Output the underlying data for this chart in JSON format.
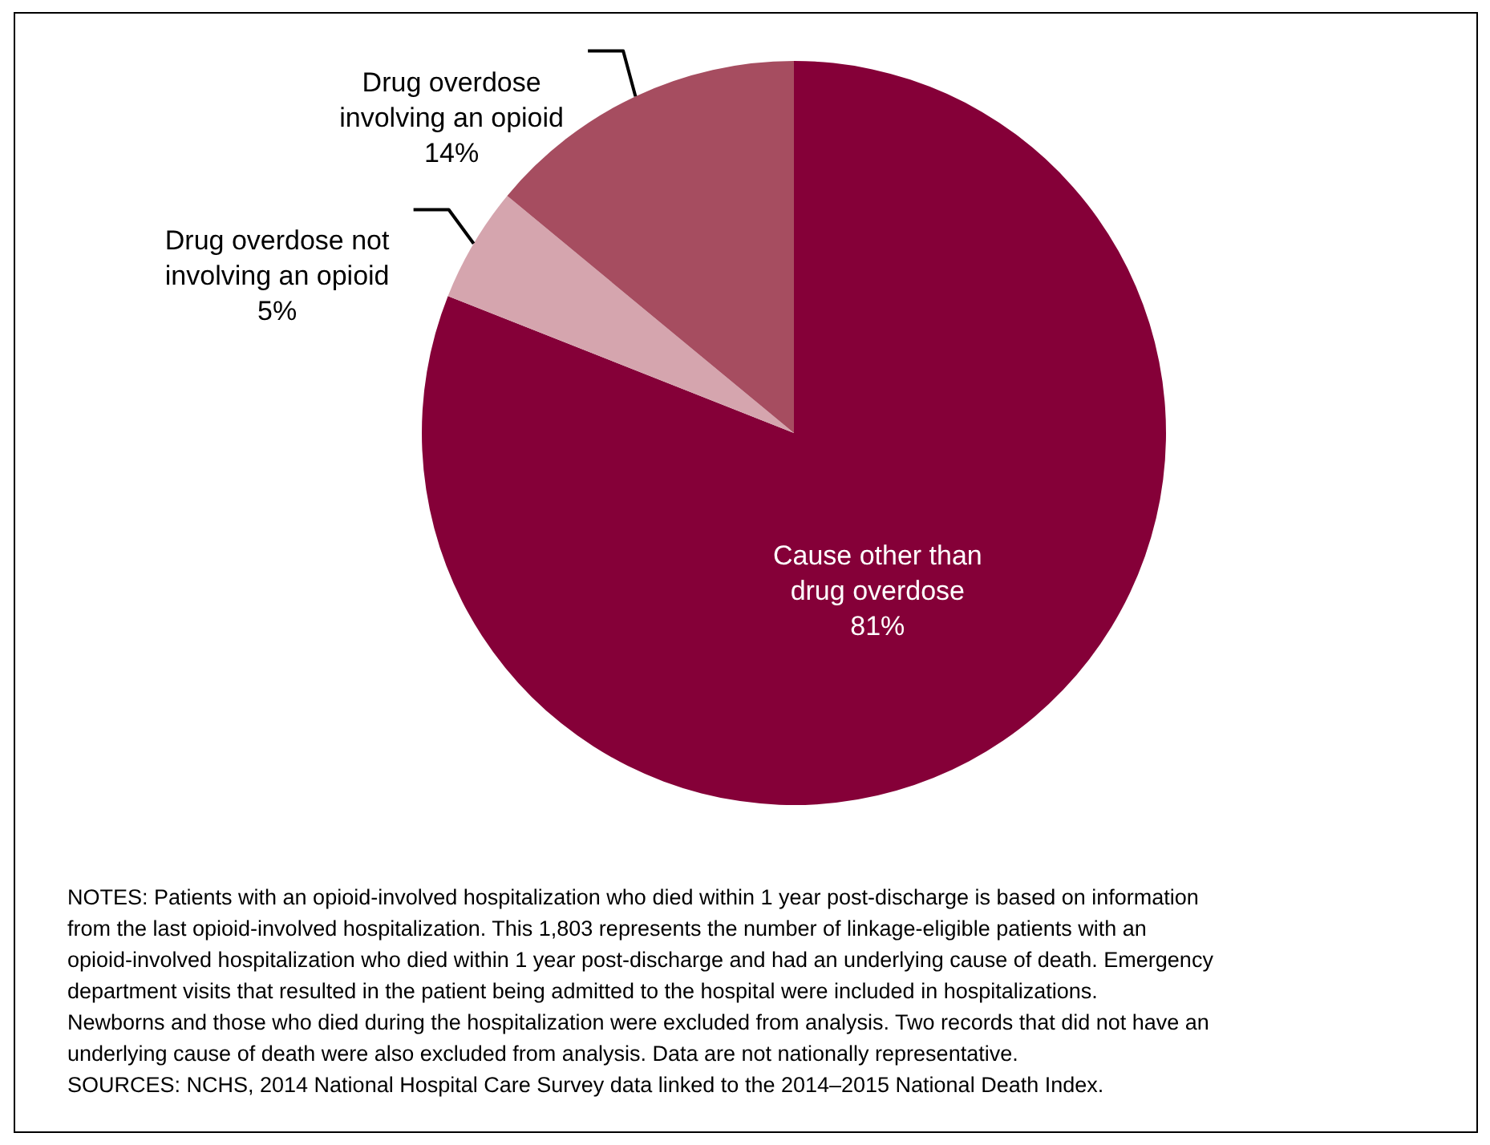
{
  "chart_data": {
    "type": "pie",
    "categories": [
      "Cause other than drug overdose",
      "Drug overdose not involving an opioid",
      "Drug overdose involving an opioid"
    ],
    "values": [
      81,
      5,
      14
    ],
    "colors": [
      "#850038",
      "#d5a5ae",
      "#a64d60"
    ],
    "value_labels": [
      "81%",
      "5%",
      "14%"
    ],
    "annotations": [
      "NOTES: Patients with an opioid-involved hospitalization who died within 1 year post-discharge is based on information from the last opioid-involved hospitalization. This 1,803 represents the number of linkage-eligible patients with an opioid-involved hospitalization who died within 1 year post-discharge and had an underlying cause of death. Emergency department visits that resulted in the patient being admitted to the hospital were included in hospitalizations. Newborns and those who died during the hospitalization were excluded from analysis. Two records that did not have an underlying cause of death were also excluded from analysis. Data are not nationally representative.",
      "SOURCES: NCHS, 2014 National Hospital Care Survey data linked to the 2014–2015 National Death Index."
    ]
  }
}
